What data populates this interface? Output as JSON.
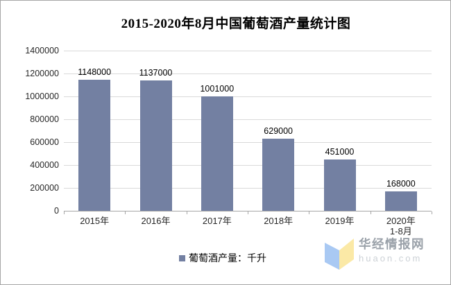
{
  "chart_data": {
    "type": "bar",
    "title": "2015-2020年8月中国葡萄酒产量统计图",
    "categories": [
      "2015年",
      "2016年",
      "2017年",
      "2018年",
      "2019年",
      "2020年"
    ],
    "category_sublabels": [
      "",
      "",
      "",
      "",
      "",
      "1-8月"
    ],
    "values": [
      1148000,
      1137000,
      1001000,
      629000,
      451000,
      168000
    ],
    "ylim": [
      0,
      1400000
    ],
    "ytick_step": 200000,
    "grid": true,
    "legend_label": "葡萄酒产量：千升",
    "legend_position": "bottom-center",
    "bar_color": "#7380a2"
  },
  "watermark": {
    "site_name": "华经情报网",
    "site_url": "huaon.com",
    "logo_blue": "#a9c9f3",
    "logo_yellow": "#fbe9a6"
  }
}
